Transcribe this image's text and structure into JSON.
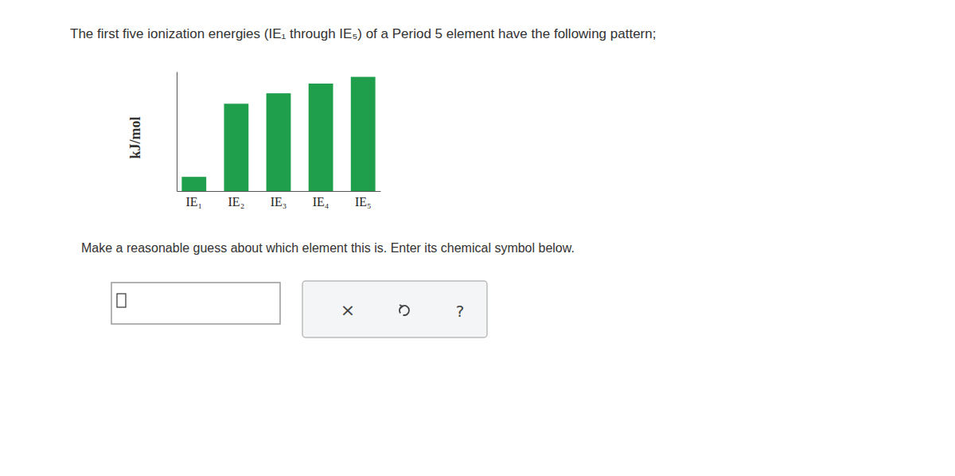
{
  "question": "The first five ionization energies (IE₁ through IE₅) of a Period 5 element have the following pattern;",
  "prompt": "Make a reasonable guess about which element this is. Enter its chemical symbol below.",
  "buttons": [
    "×",
    "?"
  ],
  "chart_data": {
    "type": "bar",
    "y_label": "kJ/mol",
    "categories": [
      "IE₁",
      "IE₂",
      "IE₃",
      "IE₄",
      "IE₅"
    ],
    "values": [
      19,
      117,
      131,
      144,
      153
    ],
    "color": "#1f9e4b",
    "ylim": [
      0,
      160
    ],
    "tick_labels": "x"
  }
}
